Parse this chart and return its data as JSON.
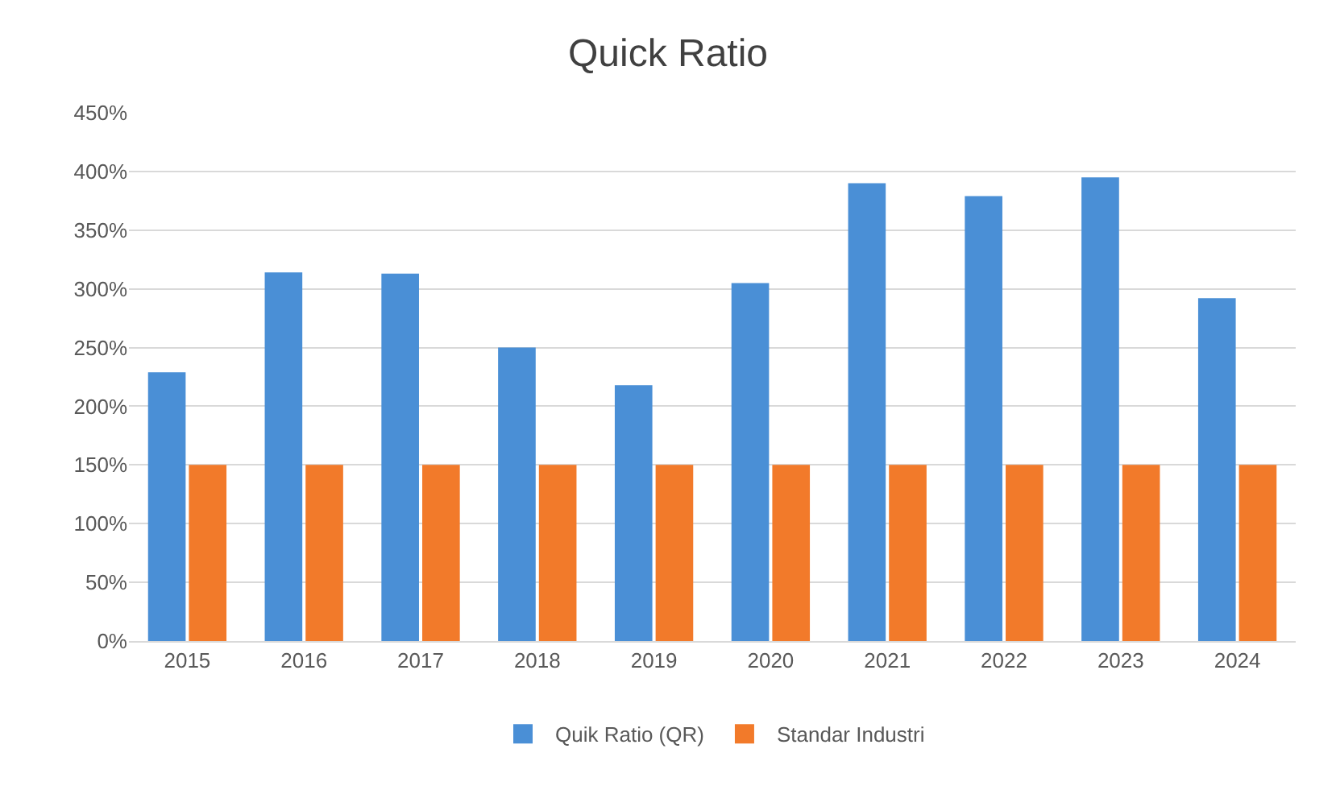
{
  "chart_data": {
    "type": "bar",
    "title": "Quick Ratio",
    "categories": [
      "2015",
      "2016",
      "2017",
      "2018",
      "2019",
      "2020",
      "2021",
      "2022",
      "2023",
      "2024"
    ],
    "series": [
      {
        "name": "Quik Ratio (QR)",
        "color": "#4a8fd6",
        "values": [
          229,
          314,
          313,
          250,
          218,
          305,
          390,
          379,
          395,
          292
        ]
      },
      {
        "name": "Standar Industri",
        "color": "#f27a2a",
        "values": [
          150,
          150,
          150,
          150,
          150,
          150,
          150,
          150,
          150,
          150
        ]
      }
    ],
    "ylim": [
      0,
      450
    ],
    "yticks": [
      {
        "value": 0,
        "label": "0%"
      },
      {
        "value": 50,
        "label": "50%"
      },
      {
        "value": 100,
        "label": "100%"
      },
      {
        "value": 150,
        "label": "150%"
      },
      {
        "value": 200,
        "label": "200%"
      },
      {
        "value": 250,
        "label": "250%"
      },
      {
        "value": 300,
        "label": "300%"
      },
      {
        "value": 350,
        "label": "350%"
      },
      {
        "value": 400,
        "label": "400%"
      },
      {
        "value": 450,
        "label": "450%"
      }
    ],
    "grid": "y",
    "legend": "bottom"
  }
}
